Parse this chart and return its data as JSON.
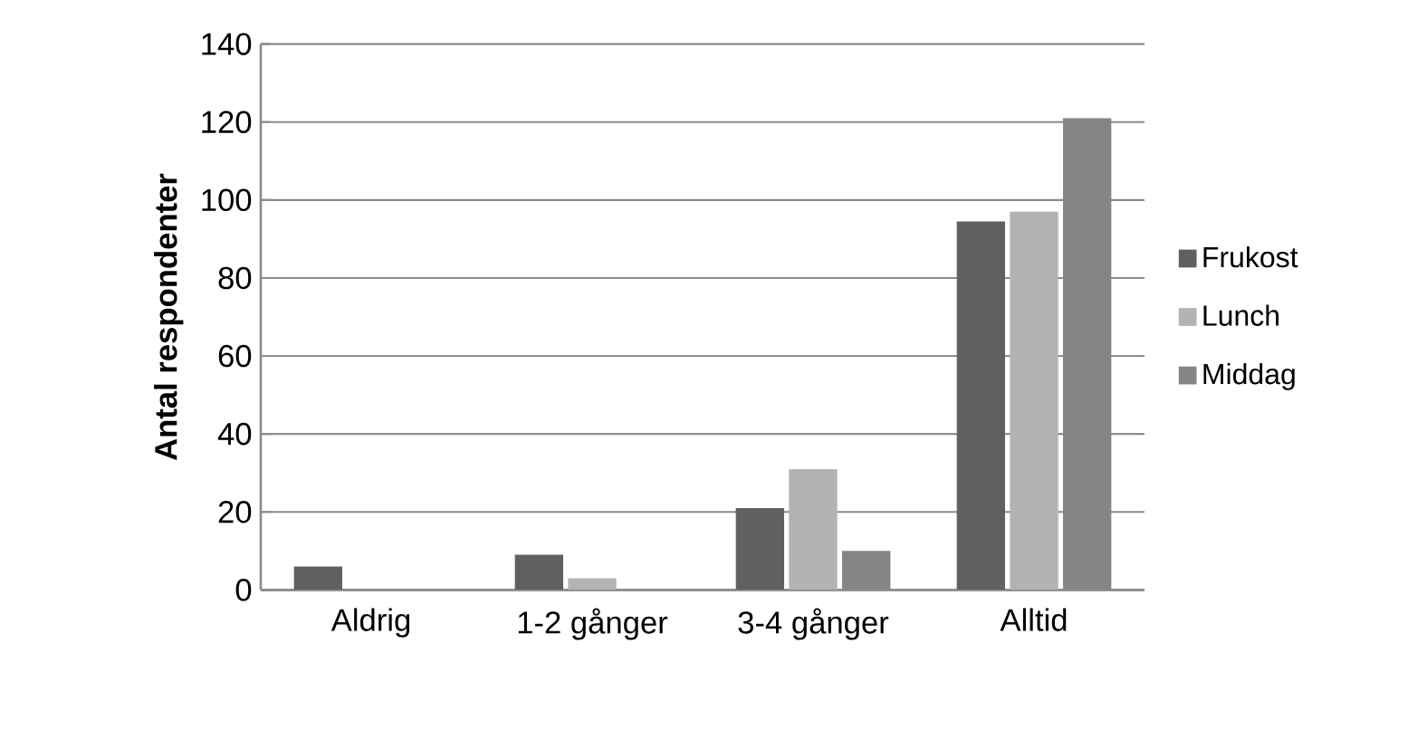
{
  "chart_data": {
    "type": "bar",
    "ylabel": "Antal respondenter",
    "categories": [
      "Aldrig",
      "1-2 gånger",
      "3-4 gånger",
      "Alltid"
    ],
    "series": [
      {
        "name": "Frukost",
        "color": "#606060",
        "values": [
          6,
          9,
          21,
          94.5
        ]
      },
      {
        "name": "Lunch",
        "color": "#b3b3b3",
        "values": [
          0,
          3,
          31,
          97
        ]
      },
      {
        "name": "Middag",
        "color": "#858585",
        "values": [
          0,
          0,
          10,
          121
        ]
      }
    ],
    "ylim": [
      0,
      140
    ],
    "yticks": [
      0,
      20,
      40,
      60,
      80,
      100,
      120,
      140
    ],
    "grid": "y",
    "legend": "right"
  }
}
